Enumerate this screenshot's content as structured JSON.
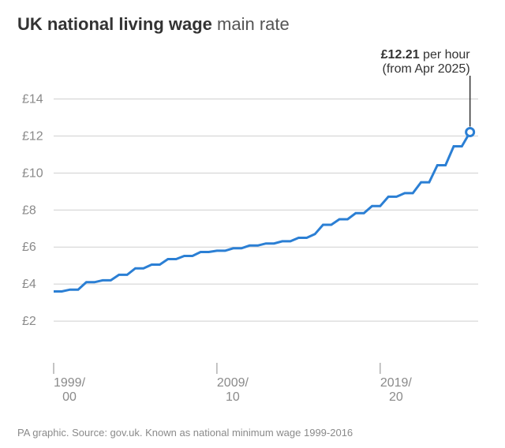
{
  "title": {
    "bold": "UK national living wage",
    "light": "main rate"
  },
  "chart": {
    "type": "line",
    "background_color": "#ffffff",
    "grid_color": "#cfcfcf",
    "line_color": "#2b7fd4",
    "line_width": 3,
    "marker_outline_color": "#2b7fd4",
    "marker_fill_color": "#ffffff",
    "marker_radius": 5,
    "marker_stroke_width": 3,
    "y_axis": {
      "min": 0,
      "max": 15,
      "ticks": [
        2,
        4,
        6,
        8,
        10,
        12,
        14
      ],
      "tick_labels": [
        "£2",
        "£4",
        "£6",
        "£8",
        "£10",
        "£12",
        "£14"
      ],
      "label_fontsize": 16,
      "label_color": "#8a8a8a"
    },
    "x_axis": {
      "min": 0,
      "max": 52,
      "ticks": [
        0,
        20,
        40
      ],
      "tick_labels_top": [
        "1999/",
        "2009/",
        "2019/"
      ],
      "tick_labels_bottom": [
        "00",
        "10",
        "20"
      ],
      "label_fontsize": 16,
      "label_color": "#8a8a8a"
    },
    "series": {
      "name": "main_rate",
      "values": [
        3.6,
        3.6,
        3.7,
        3.7,
        4.1,
        4.1,
        4.2,
        4.2,
        4.5,
        4.5,
        4.85,
        4.85,
        5.05,
        5.05,
        5.35,
        5.35,
        5.52,
        5.52,
        5.73,
        5.73,
        5.8,
        5.8,
        5.93,
        5.93,
        6.08,
        6.08,
        6.19,
        6.19,
        6.31,
        6.31,
        6.5,
        6.5,
        6.7,
        7.2,
        7.2,
        7.5,
        7.5,
        7.83,
        7.83,
        8.21,
        8.21,
        8.72,
        8.72,
        8.91,
        8.91,
        9.5,
        9.5,
        10.42,
        10.42,
        11.44,
        11.44,
        12.21
      ]
    },
    "callout": {
      "index": 51,
      "line1": "£12.21",
      "line1_suffix": " per hour",
      "line2": "(from Apr 2025)"
    }
  },
  "footer": "PA graphic. Source: gov.uk. Known as national minimum wage 1999-2016"
}
